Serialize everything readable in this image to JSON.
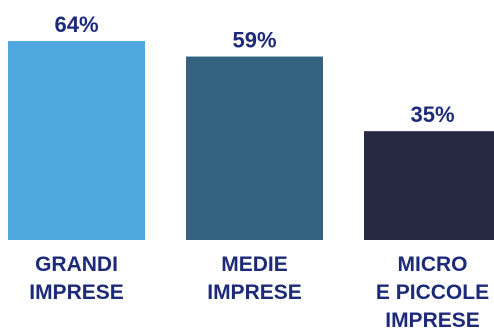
{
  "chart_data": {
    "type": "bar",
    "categories": [
      [
        "GRANDI",
        "IMPRESE"
      ],
      [
        "MEDIE",
        "IMPRESE"
      ],
      [
        "MICRO",
        "E PICCOLE",
        "IMPRESE"
      ]
    ],
    "values": [
      64,
      59,
      35
    ],
    "value_labels": [
      "64%",
      "59%",
      "35%"
    ],
    "colors": [
      "#4fa8df",
      "#346281",
      "#252a42"
    ],
    "title": "",
    "xlabel": "",
    "ylabel": "",
    "ylim": [
      0,
      64
    ],
    "grid": false,
    "legend": "none"
  }
}
